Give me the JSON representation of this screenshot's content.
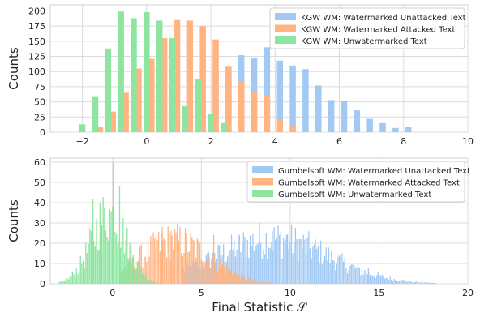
{
  "chart_data": [
    {
      "type": "bar",
      "ylabel": "Counts",
      "xlim": [
        -3.0,
        10.0
      ],
      "ylim": [
        0,
        210
      ],
      "xticks": [
        "−2",
        "0",
        "2",
        "4",
        "6",
        "8",
        "10"
      ],
      "yticks": [
        "0",
        "25",
        "50",
        "75",
        "100",
        "125",
        "150",
        "175",
        "200"
      ],
      "grid": true,
      "legend_position": "top-right",
      "series": [
        {
          "name": "KGW WM: Watermarked Unattacked Text",
          "color": "#a1c9f4",
          "x": [
            1.75,
            2.15,
            2.55,
            2.95,
            3.35,
            3.75,
            4.15,
            4.55,
            4.95,
            5.35,
            5.75,
            6.15,
            6.55,
            6.95,
            7.35,
            7.75,
            8.15
          ],
          "values": [
            63,
            104,
            90,
            127,
            123,
            140,
            118,
            110,
            104,
            77,
            53,
            51,
            36,
            22,
            15,
            7,
            8
          ]
        },
        {
          "name": "KGW WM: Watermarked Attacked Text",
          "color": "#ffb482",
          "x": [
            -1.45,
            -1.05,
            -0.65,
            -0.25,
            0.15,
            0.55,
            0.95,
            1.35,
            1.75,
            2.15,
            2.55,
            2.95,
            3.35,
            3.75,
            4.15,
            4.55
          ],
          "values": [
            8,
            34,
            65,
            105,
            121,
            155,
            185,
            184,
            175,
            153,
            108,
            84,
            66,
            60,
            20,
            10
          ]
        },
        {
          "name": "KGW WM: Unwatermarked Text",
          "color": "#8de5a1",
          "x": [
            -2.0,
            -1.6,
            -1.2,
            -0.8,
            -0.4,
            0.0,
            0.4,
            0.8,
            1.2,
            1.6,
            2.0,
            2.4
          ],
          "values": [
            13,
            58,
            138,
            199,
            188,
            198,
            184,
            155,
            43,
            88,
            30,
            15
          ]
        }
      ]
    },
    {
      "type": "bar",
      "xlabel": "Final Statistic 𝒮",
      "ylabel": "Counts",
      "xlim": [
        -3.5,
        20.0
      ],
      "ylim": [
        0,
        62
      ],
      "xticks": [
        "0",
        "5",
        "10",
        "15",
        "20"
      ],
      "yticks": [
        "0",
        "10",
        "20",
        "30",
        "40",
        "50",
        "60"
      ],
      "grid": true,
      "legend_position": "top-right",
      "series": [
        {
          "name": "Gumbelsoft WM: Watermarked Unattacked Text",
          "color": "#a1c9f4",
          "peaks": [
            {
              "x": 9.0,
              "height": 22,
              "width": 3.2
            }
          ],
          "x_range": [
            4.0,
            19.0
          ],
          "tall_bars": [
            {
              "x": 9.0,
              "value": 26
            },
            {
              "x": 9.8,
              "value": 24
            },
            {
              "x": 14.4,
              "value": 8
            }
          ]
        },
        {
          "name": "Gumbelsoft WM: Watermarked Attacked Text",
          "color": "#ffb482",
          "peaks": [
            {
              "x": 3.5,
              "height": 21,
              "width": 2.0
            }
          ],
          "x_range": [
            0.5,
            9.5
          ],
          "tall_bars": [
            {
              "x": 2.8,
              "value": 28
            },
            {
              "x": 3.3,
              "value": 26
            },
            {
              "x": 4.1,
              "value": 26
            },
            {
              "x": 5.7,
              "value": 24
            }
          ]
        },
        {
          "name": "Gumbelsoft WM: Unwatermarked Text",
          "color": "#8de5a1",
          "peaks": [
            {
              "x": -0.2,
              "height": 34,
              "width": 1.0
            }
          ],
          "x_range": [
            -3.0,
            3.0
          ],
          "tall_bars": [
            {
              "x": 0.05,
              "value": 60
            },
            {
              "x": -1.1,
              "value": 42
            },
            {
              "x": 0.4,
              "value": 48
            },
            {
              "x": -0.7,
              "value": 40
            }
          ]
        }
      ]
    }
  ]
}
